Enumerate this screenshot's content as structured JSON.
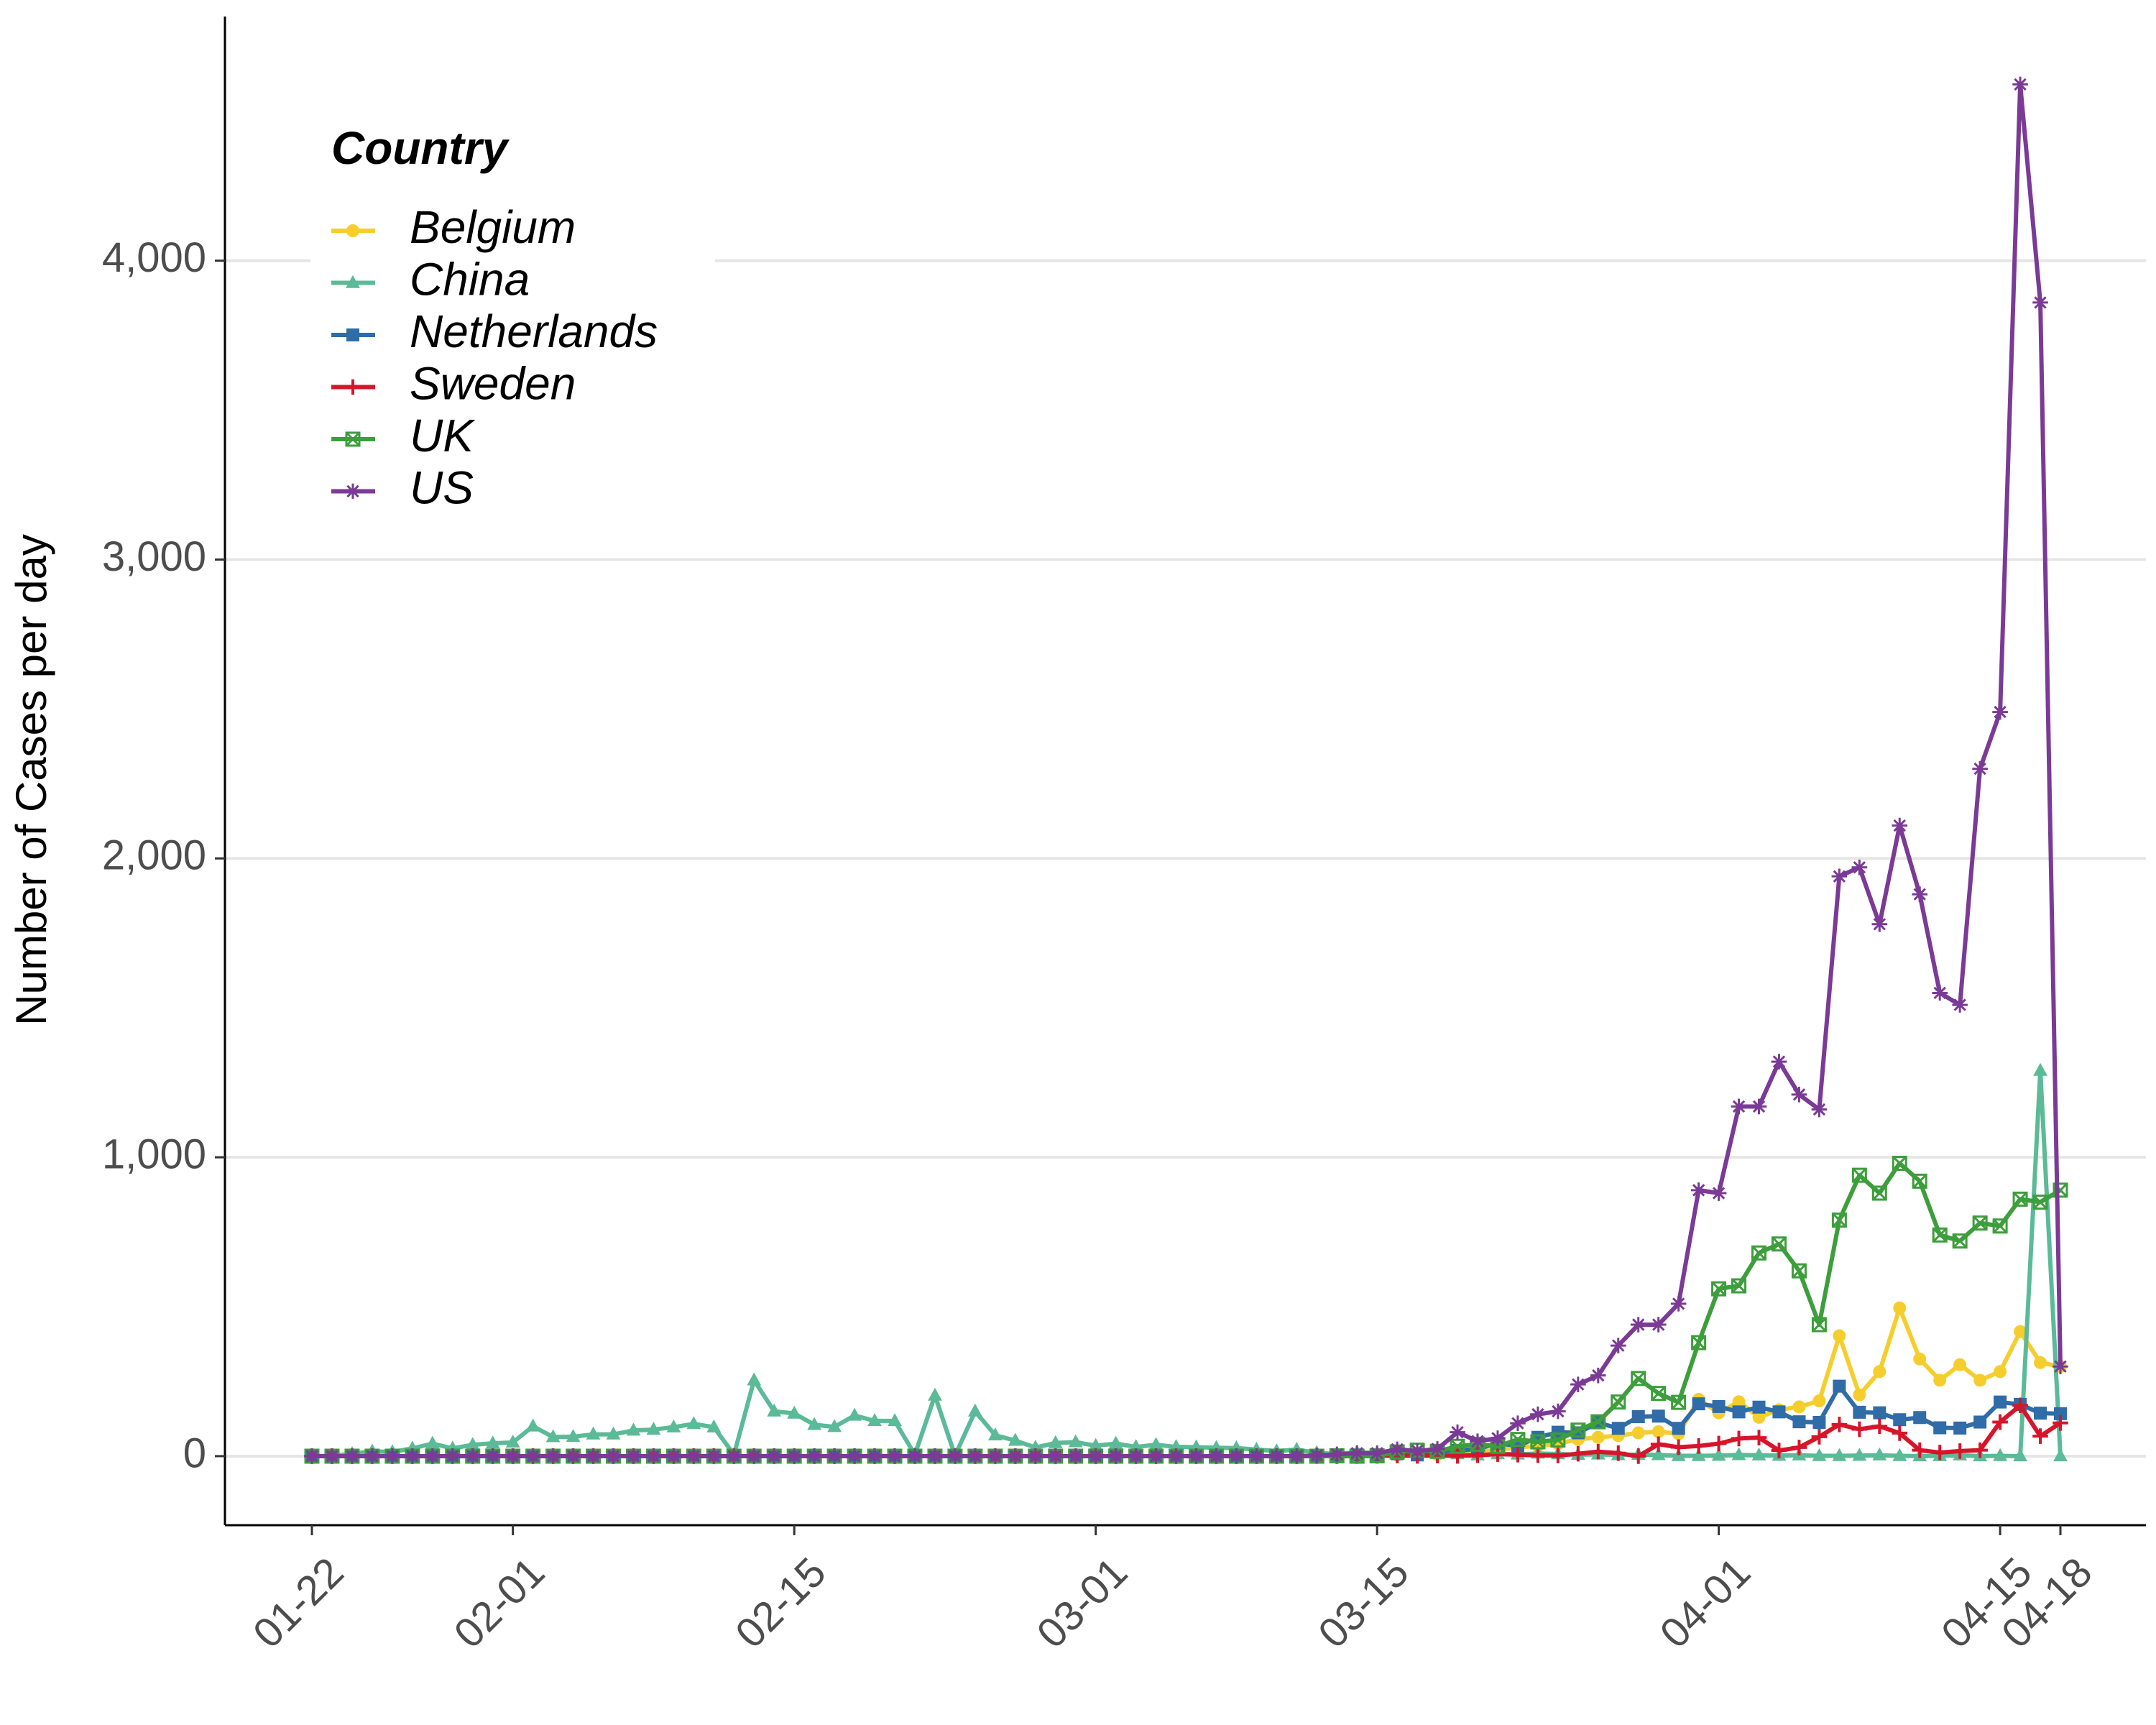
{
  "chart_data": {
    "type": "line",
    "y_label": "Number of Cases per day",
    "legend_title": "Country",
    "legend": "top-left",
    "grid": true,
    "x": [
      "01-22",
      "01-23",
      "01-24",
      "01-25",
      "01-26",
      "01-27",
      "01-28",
      "01-29",
      "01-30",
      "01-31",
      "02-01",
      "02-02",
      "02-03",
      "02-04",
      "02-05",
      "02-06",
      "02-07",
      "02-08",
      "02-09",
      "02-10",
      "02-11",
      "02-12",
      "02-13",
      "02-14",
      "02-15",
      "02-16",
      "02-17",
      "02-18",
      "02-19",
      "02-20",
      "02-21",
      "02-22",
      "02-23",
      "02-24",
      "02-25",
      "02-26",
      "02-27",
      "02-28",
      "02-29",
      "03-01",
      "03-02",
      "03-03",
      "03-04",
      "03-05",
      "03-06",
      "03-07",
      "03-08",
      "03-09",
      "03-10",
      "03-11",
      "03-12",
      "03-13",
      "03-14",
      "03-15",
      "03-16",
      "03-17",
      "03-18",
      "03-19",
      "03-20",
      "03-21",
      "03-22",
      "03-23",
      "03-24",
      "03-25",
      "03-26",
      "03-27",
      "03-28",
      "03-29",
      "03-30",
      "03-31",
      "04-01",
      "04-02",
      "04-03",
      "04-04",
      "04-05",
      "04-06",
      "04-07",
      "04-08",
      "04-09",
      "04-10",
      "04-11",
      "04-12",
      "04-13",
      "04-14",
      "04-15",
      "04-16",
      "04-17",
      "04-18"
    ],
    "xticks": [
      "01-22",
      "02-01",
      "02-15",
      "03-01",
      "03-15",
      "04-01",
      "04-15",
      "04-18"
    ],
    "ylim": [
      -231,
      4817
    ],
    "yticks": [
      0,
      {
        "value": 1000,
        "label": "1,000"
      },
      {
        "value": 2000,
        "label": "2,000"
      },
      {
        "value": 3000,
        "label": "3,000"
      },
      {
        "value": 4000,
        "label": "4,000"
      }
    ],
    "series": [
      {
        "name": "Belgium",
        "color": "#f5ce2e",
        "marker": "circle",
        "values": [
          0,
          0,
          0,
          0,
          0,
          0,
          0,
          0,
          0,
          0,
          0,
          0,
          0,
          0,
          0,
          0,
          0,
          0,
          0,
          0,
          0,
          0,
          0,
          0,
          0,
          0,
          0,
          0,
          0,
          0,
          0,
          0,
          0,
          0,
          0,
          0,
          0,
          0,
          0,
          0,
          0,
          0,
          0,
          0,
          0,
          0,
          0,
          0,
          0,
          0,
          0,
          1,
          1,
          2,
          4,
          4,
          5,
          10,
          14,
          21,
          30,
          34,
          42,
          56,
          63,
          69,
          78,
          82,
          75,
          190,
          145,
          182,
          130,
          155,
          165,
          185,
          403,
          205,
          283,
          496,
          325,
          254,
          306,
          254,
          283,
          417,
          313,
          300
        ]
      },
      {
        "name": "China",
        "color": "#5bba98",
        "marker": "triangle",
        "values": [
          0,
          1,
          8,
          16,
          14,
          26,
          42,
          26,
          38,
          43,
          46,
          100,
          64,
          65,
          73,
          73,
          86,
          89,
          97,
          108,
          97,
          5,
          254,
          150,
          143,
          105,
          98,
          136,
          118,
          118,
          5,
          203,
          2,
          150,
          70,
          52,
          29,
          44,
          47,
          35,
          42,
          31,
          38,
          31,
          30,
          28,
          27,
          22,
          17,
          22,
          11,
          7,
          13,
          10,
          14,
          13,
          11,
          7,
          3,
          7,
          6,
          9,
          7,
          5,
          6,
          4,
          5,
          4,
          1,
          1,
          2,
          4,
          3,
          2,
          3,
          1,
          1,
          2,
          3,
          1,
          0,
          1,
          3,
          0,
          1,
          0,
          1290,
          0
        ]
      },
      {
        "name": "Netherlands",
        "color": "#2f6ca8",
        "marker": "square",
        "values": [
          0,
          0,
          0,
          0,
          0,
          0,
          0,
          0,
          0,
          0,
          0,
          0,
          0,
          0,
          0,
          0,
          0,
          0,
          0,
          0,
          0,
          0,
          0,
          0,
          0,
          0,
          0,
          0,
          0,
          0,
          0,
          0,
          0,
          0,
          0,
          0,
          0,
          0,
          0,
          0,
          0,
          0,
          0,
          0,
          0,
          0,
          0,
          0,
          0,
          0,
          0,
          1,
          4,
          1,
          8,
          4,
          15,
          19,
          24,
          43,
          34,
          63,
          80,
          78,
          112,
          93,
          132,
          134,
          93,
          175,
          166,
          148,
          164,
          148,
          115,
          113,
          234,
          147,
          145,
          122,
          129,
          95,
          94,
          114,
          181,
          173,
          144,
          142
        ]
      },
      {
        "name": "Sweden",
        "color": "#d7152a",
        "marker": "plus",
        "values": [
          0,
          0,
          0,
          0,
          0,
          0,
          0,
          0,
          0,
          0,
          0,
          0,
          0,
          0,
          0,
          0,
          0,
          0,
          0,
          0,
          0,
          0,
          0,
          0,
          0,
          0,
          0,
          0,
          0,
          0,
          0,
          0,
          0,
          0,
          0,
          0,
          0,
          0,
          0,
          0,
          0,
          0,
          0,
          0,
          0,
          0,
          0,
          0,
          0,
          0,
          0,
          0,
          0,
          1,
          2,
          1,
          2,
          1,
          3,
          7,
          5,
          3,
          2,
          8,
          15,
          10,
          0,
          40,
          30,
          34,
          42,
          59,
          62,
          19,
          29,
          65,
          106,
          90,
          100,
          77,
          20,
          12,
          17,
          20,
          114,
          170,
          67,
          111
        ]
      },
      {
        "name": "UK",
        "color": "#3d9e3c",
        "marker": "square-cross",
        "values": [
          0,
          0,
          0,
          0,
          0,
          0,
          0,
          0,
          0,
          0,
          0,
          0,
          0,
          0,
          0,
          0,
          0,
          0,
          0,
          0,
          0,
          0,
          0,
          0,
          0,
          0,
          0,
          0,
          0,
          0,
          0,
          0,
          0,
          0,
          0,
          0,
          0,
          0,
          0,
          0,
          0,
          0,
          0,
          0,
          0,
          0,
          0,
          0,
          0,
          0,
          0,
          1,
          0,
          1,
          14,
          20,
          16,
          33,
          40,
          33,
          56,
          48,
          54,
          87,
          115,
          181,
          260,
          210,
          180,
          380,
          560,
          570,
          680,
          710,
          620,
          440,
          790,
          940,
          880,
          980,
          920,
          740,
          720,
          780,
          770,
          860,
          850,
          890
        ]
      },
      {
        "name": "US",
        "color": "#7b3a96",
        "marker": "asterisk",
        "values": [
          0,
          0,
          0,
          0,
          0,
          0,
          0,
          0,
          0,
          0,
          0,
          0,
          0,
          0,
          0,
          0,
          0,
          0,
          0,
          0,
          0,
          0,
          0,
          0,
          0,
          0,
          0,
          0,
          0,
          0,
          0,
          0,
          0,
          0,
          0,
          0,
          0,
          0,
          0,
          0,
          0,
          0,
          0,
          0,
          0,
          0,
          0,
          0,
          0,
          0,
          2,
          6,
          10,
          10,
          23,
          17,
          24,
          80,
          50,
          60,
          110,
          140,
          150,
          240,
          270,
          370,
          440,
          440,
          510,
          890,
          880,
          1170,
          1170,
          1320,
          1210,
          1160,
          1940,
          1970,
          1780,
          2110,
          1880,
          1550,
          1510,
          2300,
          2490,
          4590,
          3860,
          300
        ]
      }
    ]
  }
}
